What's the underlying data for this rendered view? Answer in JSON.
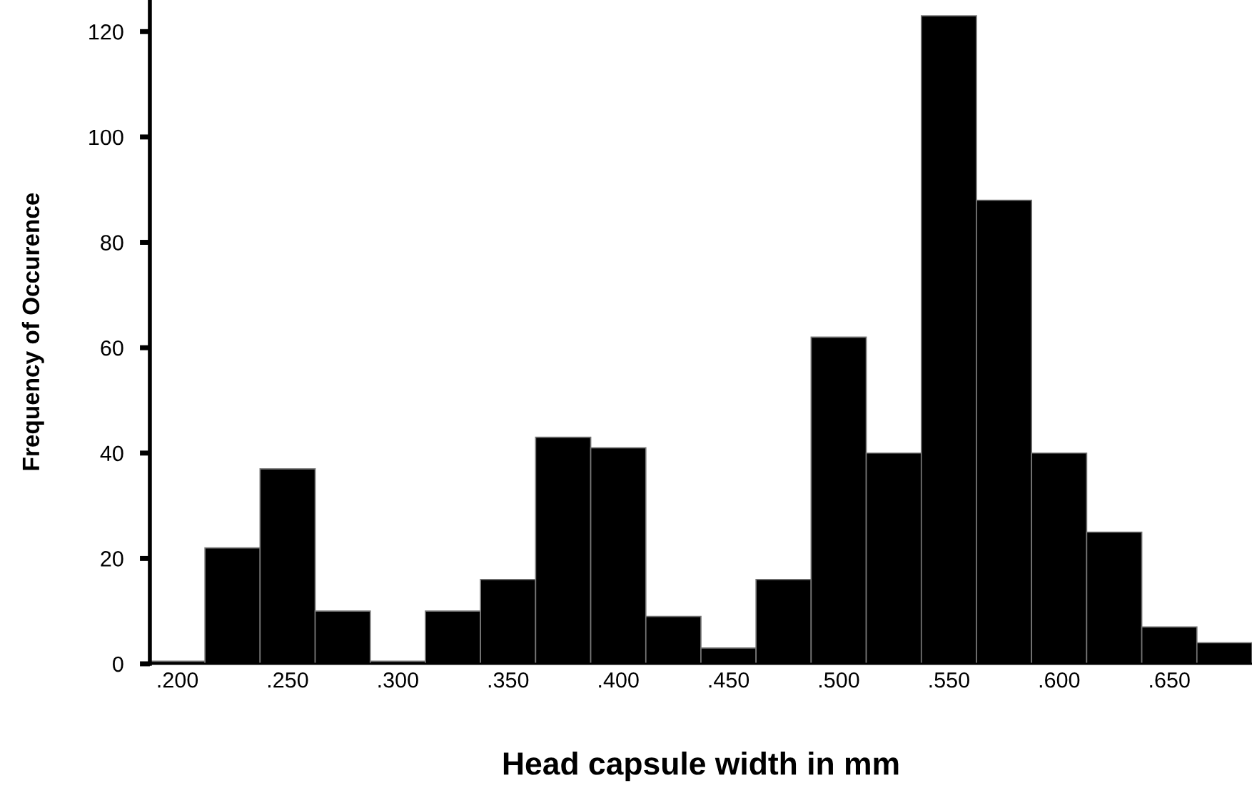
{
  "chart_data": {
    "type": "histogram",
    "xlabel": "Head capsule width in mm",
    "ylabel": "Frequency of Occurence",
    "bins": [
      0.1875,
      0.2125,
      0.2375,
      0.2625,
      0.2875,
      0.3125,
      0.3375,
      0.3625,
      0.3875,
      0.4125,
      0.4375,
      0.4625,
      0.4875,
      0.5125,
      0.5375,
      0.5625,
      0.5875,
      0.6125,
      0.6375,
      0.6625,
      0.6875
    ],
    "values": [
      0.5,
      22,
      37,
      10,
      0.5,
      10,
      16,
      43,
      41,
      9,
      3,
      16,
      62,
      40,
      123,
      88,
      40,
      25,
      7,
      4
    ],
    "color": "#000000",
    "xlim": [
      0.1875,
      0.6875
    ],
    "xticks": [
      {
        "value": 0.2,
        "label": ".200"
      },
      {
        "value": 0.25,
        "label": ".250"
      },
      {
        "value": 0.3,
        "label": ".300"
      },
      {
        "value": 0.35,
        "label": ".350"
      },
      {
        "value": 0.4,
        "label": ".400"
      },
      {
        "value": 0.45,
        "label": ".450"
      },
      {
        "value": 0.5,
        "label": ".500"
      },
      {
        "value": 0.55,
        "label": ".550"
      },
      {
        "value": 0.6,
        "label": ".600"
      },
      {
        "value": 0.65,
        "label": ".650"
      }
    ],
    "ylim": [
      0,
      126
    ],
    "yticks": [
      0,
      20,
      40,
      60,
      80,
      100,
      120
    ],
    "grid": false
  }
}
